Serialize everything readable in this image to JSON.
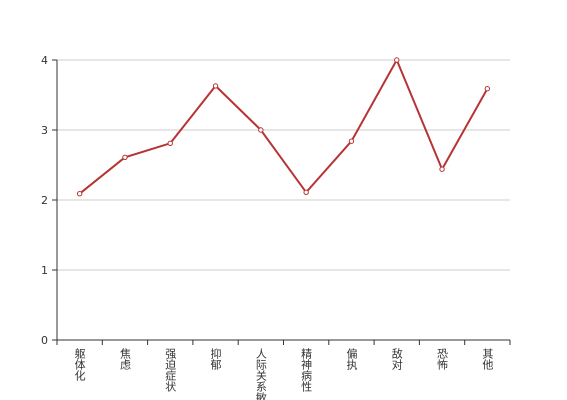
{
  "chart_data": {
    "type": "line",
    "categories": [
      "躯体化",
      "焦虑",
      "强迫症状",
      "抑郁",
      "人际关系敏感",
      "精神病性",
      "偏执",
      "敌对",
      "恐怖",
      "其他"
    ],
    "values": [
      2.09,
      2.61,
      2.81,
      3.63,
      3.0,
      2.11,
      2.84,
      4.0,
      2.44,
      3.59
    ],
    "color": "#b83333",
    "ylim": [
      0,
      4
    ],
    "yticks": [
      0,
      1,
      2,
      3,
      4
    ],
    "grid": true
  }
}
